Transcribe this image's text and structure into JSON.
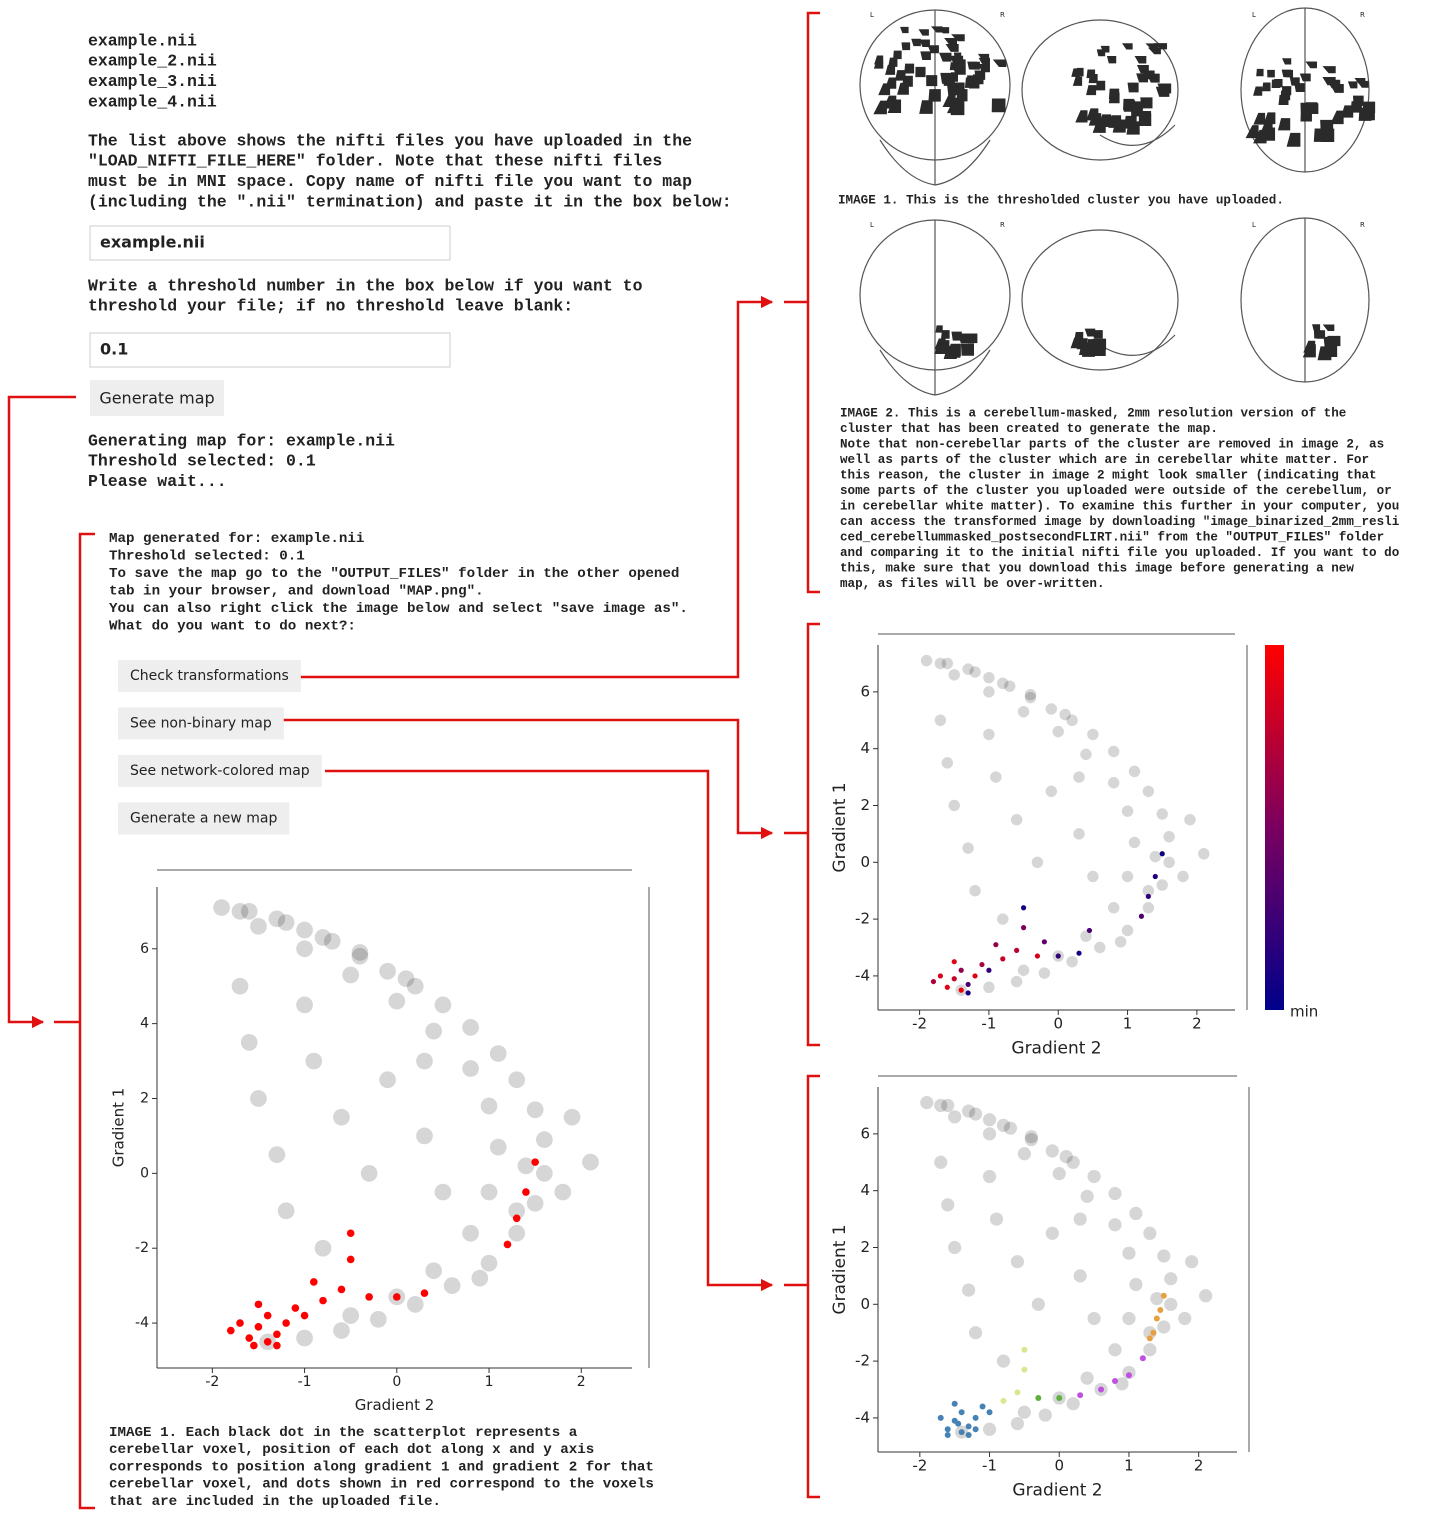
{
  "left": {
    "files": [
      "example.nii",
      "example_2.nii",
      "example_3.nii",
      "example_4.nii"
    ],
    "instructions": [
      "The list above shows the nifti files you have uploaded in the",
      "\"LOAD_NIFTI_FILE_HERE\" folder. Note that these nifti files",
      "must be in MNI space. Copy name of nifti file you want to map",
      "(including the \".nii\" termination) and paste it in the box below:"
    ],
    "file_input": "example.nii",
    "threshold_instructions": [
      "Write a threshold number in the box below if you want to",
      "threshold your file; if no threshold leave blank:"
    ],
    "threshold_input": "0.1",
    "generate_button": "Generate map",
    "status": [
      "Generating map for: example.nii",
      "Threshold selected: 0.1",
      "Please wait..."
    ],
    "result": [
      "Map generated for: example.nii",
      "Threshold selected: 0.1",
      "To save the map go to the \"OUTPUT_FILES\" folder in the other opened",
      "tab in your browser, and download \"MAP.png\".",
      "You can also right click the image below and select \"save image as\".",
      "What do you want to do next?:"
    ],
    "buttons": [
      "Check transformations",
      "See non-binary map",
      "See network-colored map",
      "Generate a new map"
    ],
    "caption": [
      "IMAGE 1. Each black dot in the scatterplot represents a",
      "cerebellar voxel, position of each dot along x and y axis",
      "corresponds to position along gradient 1 and gradient 2 for that",
      "cerebellar voxel, and dots shown in red correspond to the voxels",
      "that are included in the uploaded file."
    ]
  },
  "right": {
    "brain_labels": [
      "L",
      "R"
    ],
    "image1_caption": "IMAGE 1. This is the thresholded cluster you have uploaded.",
    "image2_caption": [
      "IMAGE 2. This is a cerebellum-masked, 2mm resolution version of the",
      "cluster that has been created to generate the map.",
      "Note that non-cerebellar parts of the cluster are removed in image 2, as",
      "well as parts of the cluster which are in cerebellar white matter. For",
      "this reason, the cluster in image 2 might look smaller (indicating that",
      "some parts of the cluster you uploaded were outside of the cerebellum, or",
      "in cerebellar white matter). To examine this further in your computer, you",
      "can access the transformed image by downloading \"image_binarized_2mm_resli",
      "ced_cerebellummasked_postsecondFLIRT.nii\" from the \"OUTPUT_FILES\" folder",
      "and comparing it to the initial nifti file you uploaded. If you want to do",
      "this, make sure that you download this image before generating a new",
      "map, as files will be over-written."
    ]
  },
  "plots": {
    "xlabel": "Gradient 2",
    "ylabel": "Gradient 1",
    "xlim": [
      -2.6,
      2.55
    ],
    "ylim": [
      -5.2,
      7.65
    ],
    "xticks": [
      -2,
      -1,
      0,
      1,
      2
    ],
    "yticks": [
      -4,
      -2,
      0,
      2,
      4,
      6
    ],
    "cloud": {
      "color": "#000000",
      "x": [
        -1.9,
        -1.6,
        -1.3,
        -1.0,
        -0.7,
        -0.4,
        -0.1,
        0.2,
        0.5,
        0.8,
        1.1,
        1.3,
        1.5,
        1.6,
        1.6,
        1.5,
        1.3,
        1.0,
        0.6,
        0.2,
        -0.2,
        -0.6,
        -1.0,
        -1.4,
        -1.5,
        -1.0,
        -0.5,
        0.0,
        0.4,
        0.8,
        1.0,
        1.1,
        1.0,
        0.8,
        0.4,
        0.0,
        -0.5,
        -1.7,
        -1.6,
        -1.5,
        -1.3,
        -1.2,
        -0.9,
        -0.6,
        -0.3,
        -0.1,
        0.3,
        0.5,
        -0.8,
        -1.0,
        0.3,
        1.9,
        2.1,
        1.8,
        -1.7,
        -1.2,
        -0.8,
        -0.4,
        0.1,
        1.3,
        1.4,
        0.9
      ],
      "y": [
        7.1,
        7.0,
        6.8,
        6.5,
        6.2,
        5.8,
        5.4,
        5.0,
        4.5,
        3.9,
        3.2,
        2.5,
        1.7,
        0.9,
        0.0,
        -0.8,
        -1.6,
        -2.4,
        -3.0,
        -3.5,
        -3.9,
        -4.2,
        -4.4,
        -4.5,
        6.6,
        6.0,
        5.3,
        4.6,
        3.8,
        2.8,
        1.8,
        0.7,
        -0.5,
        -1.6,
        -2.6,
        -3.3,
        -3.8,
        5.0,
        3.5,
        2.0,
        0.5,
        -1.0,
        3.0,
        1.5,
        0.0,
        2.5,
        1.0,
        -0.5,
        -2.0,
        4.5,
        3.0,
        1.5,
        0.3,
        -0.5,
        7.0,
        6.7,
        6.3,
        5.9,
        5.2,
        -1.0,
        0.2,
        -2.8
      ]
    },
    "binary": {
      "color": "#ff0000",
      "x": [
        -1.6,
        -1.4,
        -1.5,
        -1.3,
        -1.7,
        -1.2,
        -1.4,
        -1.1,
        -1.0,
        -0.8,
        -0.6,
        -0.5,
        -0.5,
        -0.3,
        0.0,
        0.3,
        1.2,
        1.3,
        1.4,
        1.5,
        -1.8,
        -1.5,
        -0.9,
        -1.3,
        -1.55
      ],
      "y": [
        -4.4,
        -4.5,
        -4.1,
        -4.3,
        -4.0,
        -4.0,
        -3.8,
        -3.6,
        -3.8,
        -3.4,
        -3.1,
        -2.3,
        -1.6,
        -3.3,
        -3.3,
        -3.2,
        -1.9,
        -1.2,
        -0.5,
        0.3,
        -4.2,
        -3.5,
        -2.9,
        -4.6,
        -4.6
      ]
    },
    "nonbinary": {
      "cmap": [
        "#00008b",
        "#7a0060",
        "#ff0000"
      ],
      "colorbar_label": "min",
      "x": [
        -1.6,
        -1.4,
        -1.5,
        -1.3,
        -1.7,
        -1.2,
        -1.4,
        -1.1,
        -1.0,
        -0.8,
        -0.6,
        -0.5,
        -0.5,
        -0.3,
        0.0,
        0.3,
        1.2,
        1.3,
        1.4,
        1.5,
        -1.8,
        -1.5,
        -0.9,
        -1.3,
        -0.2,
        0.45
      ],
      "y": [
        -4.4,
        -4.5,
        -4.1,
        -4.3,
        -4.0,
        -4.0,
        -3.8,
        -3.6,
        -3.8,
        -3.4,
        -3.1,
        -2.3,
        -1.6,
        -3.3,
        -3.3,
        -3.2,
        -1.9,
        -1.2,
        -0.5,
        0.3,
        -4.2,
        -3.5,
        -2.9,
        -4.6,
        -2.8,
        -2.4
      ],
      "c": [
        0.9,
        0.95,
        0.8,
        0.3,
        0.85,
        0.9,
        0.6,
        0.7,
        0.2,
        0.8,
        0.75,
        0.5,
        0.1,
        0.85,
        0.2,
        0.1,
        0.3,
        0.2,
        0.15,
        0.05,
        0.7,
        0.9,
        0.6,
        0.1,
        0.4,
        0.3
      ]
    },
    "network": {
      "groups": [
        {
          "color": "#4682b4",
          "x": [
            -1.6,
            -1.4,
            -1.5,
            -1.3,
            -1.7,
            -1.2,
            -1.4,
            -1.1,
            -1.0,
            -1.5,
            -1.3,
            -1.2,
            -1.6,
            -1.45
          ],
          "y": [
            -4.4,
            -4.5,
            -4.1,
            -4.3,
            -4.0,
            -4.0,
            -3.8,
            -3.6,
            -3.8,
            -3.5,
            -4.6,
            -4.4,
            -4.6,
            -4.2
          ]
        },
        {
          "color": "#e8a040",
          "x": [
            1.3,
            1.4,
            1.5,
            1.35,
            1.45
          ],
          "y": [
            -1.2,
            -0.5,
            0.3,
            -1.0,
            -0.2
          ]
        },
        {
          "color": "#c050e0",
          "x": [
            0.3,
            0.6,
            1.0,
            1.2,
            0.8
          ],
          "y": [
            -3.2,
            -3.0,
            -2.5,
            -1.9,
            -2.7
          ]
        },
        {
          "color": "#60b040",
          "x": [
            -0.3,
            0.0
          ],
          "y": [
            -3.3,
            -3.3
          ]
        },
        {
          "color": "#d8e890",
          "x": [
            -0.5,
            -0.8,
            -0.6,
            -0.5
          ],
          "y": [
            -2.3,
            -3.4,
            -3.1,
            -1.6
          ]
        }
      ]
    }
  }
}
